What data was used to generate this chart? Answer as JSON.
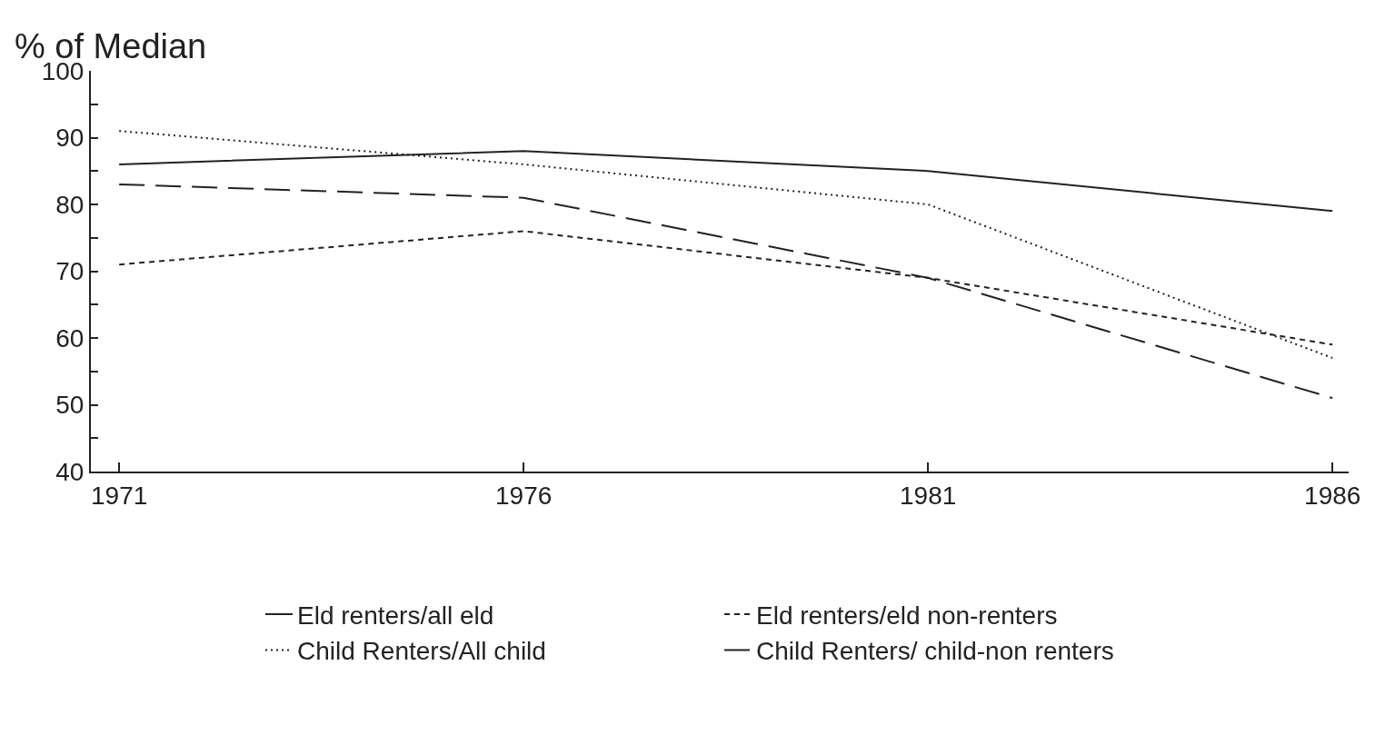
{
  "chart_data": {
    "type": "line",
    "ylabel": "% of Median",
    "x": [
      1971,
      1976,
      1981,
      1986
    ],
    "series": [
      {
        "name": "Eld renters/all eld",
        "color": "#222222",
        "line_style": "solid",
        "values": [
          86,
          88,
          85,
          79
        ]
      },
      {
        "name": "Eld renters/eld non-renters",
        "color": "#222222",
        "line_style": "dashed",
        "values": [
          71,
          76,
          69,
          59
        ]
      },
      {
        "name": "Child Renters/All child",
        "color": "#222222",
        "line_style": "dotted",
        "values": [
          91,
          86,
          80,
          57
        ]
      },
      {
        "name": "Child Renters/ child-non renters",
        "color": "#222222",
        "line_style": "dashed",
        "values": [
          83,
          81,
          69,
          51
        ]
      }
    ],
    "xlim": [
      1970.65,
      1986.2
    ],
    "xticks": [
      1971,
      1976,
      1981,
      1986
    ],
    "ylim": [
      40,
      100
    ],
    "yticks": [
      40,
      {
        "value": 45,
        "label": null
      },
      50,
      {
        "value": 55,
        "label": null
      },
      60,
      {
        "value": 65,
        "label": null
      },
      70,
      {
        "value": 75,
        "label": null
      },
      80,
      {
        "value": 85,
        "label": null
      },
      90,
      {
        "value": 95,
        "label": null
      },
      100
    ],
    "grid": false,
    "legend": "bottom",
    "marker": "none"
  }
}
